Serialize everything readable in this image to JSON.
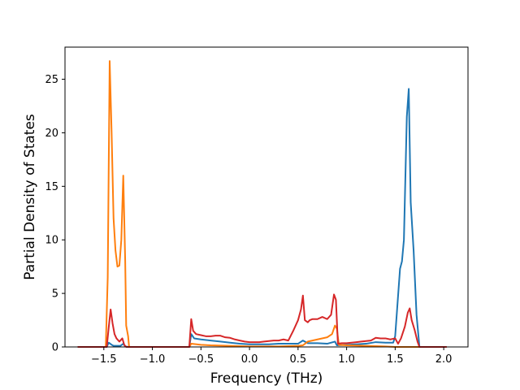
{
  "chart_data": {
    "type": "line",
    "xlabel": "Frequency (THz)",
    "ylabel": "Partial Density of States",
    "xlim": [
      -1.9,
      2.25
    ],
    "ylim": [
      0,
      28
    ],
    "xticks": [
      -1.5,
      -1.0,
      -0.5,
      0.0,
      0.5,
      1.0,
      1.5,
      2.0
    ],
    "xtick_labels": [
      "−1.5",
      "−1.0",
      "−0.5",
      "0.0",
      "0.5",
      "1.0",
      "1.5",
      "2.0"
    ],
    "yticks": [
      0,
      5,
      10,
      15,
      20,
      25
    ],
    "ytick_labels": [
      "0",
      "5",
      "10",
      "15",
      "20",
      "25"
    ],
    "grid": false,
    "legend": "none",
    "series": [
      {
        "color": "#1f77b4",
        "points": [
          [
            -1.77,
            0
          ],
          [
            -1.47,
            0
          ],
          [
            -1.45,
            0.4
          ],
          [
            -1.42,
            0.2
          ],
          [
            -1.4,
            0.1
          ],
          [
            -1.33,
            0.1
          ],
          [
            -1.3,
            0.3
          ],
          [
            -1.28,
            0.05
          ],
          [
            -1.25,
            0
          ],
          [
            -0.62,
            0
          ],
          [
            -0.6,
            1.2
          ],
          [
            -0.57,
            0.8
          ],
          [
            -0.5,
            0.7
          ],
          [
            -0.4,
            0.6
          ],
          [
            -0.3,
            0.5
          ],
          [
            -0.2,
            0.4
          ],
          [
            -0.1,
            0.3
          ],
          [
            0.0,
            0.25
          ],
          [
            0.1,
            0.25
          ],
          [
            0.2,
            0.25
          ],
          [
            0.3,
            0.3
          ],
          [
            0.4,
            0.3
          ],
          [
            0.5,
            0.3
          ],
          [
            0.55,
            0.6
          ],
          [
            0.6,
            0.35
          ],
          [
            0.7,
            0.35
          ],
          [
            0.8,
            0.3
          ],
          [
            0.88,
            0.5
          ],
          [
            0.9,
            0.15
          ],
          [
            1.0,
            0.2
          ],
          [
            1.1,
            0.25
          ],
          [
            1.2,
            0.3
          ],
          [
            1.3,
            0.45
          ],
          [
            1.4,
            0.4
          ],
          [
            1.48,
            0.4
          ],
          [
            1.5,
            1.0
          ],
          [
            1.55,
            7.3
          ],
          [
            1.57,
            8.0
          ],
          [
            1.59,
            10.0
          ],
          [
            1.62,
            21.5
          ],
          [
            1.64,
            24.1
          ],
          [
            1.66,
            13.5
          ],
          [
            1.69,
            9.0
          ],
          [
            1.72,
            3.0
          ],
          [
            1.75,
            0
          ],
          [
            2.03,
            0
          ]
        ]
      },
      {
        "color": "#ff7f0e",
        "points": [
          [
            -1.77,
            0
          ],
          [
            -1.48,
            0
          ],
          [
            -1.46,
            6.5
          ],
          [
            -1.44,
            26.7
          ],
          [
            -1.42,
            20.0
          ],
          [
            -1.4,
            12.0
          ],
          [
            -1.38,
            9.0
          ],
          [
            -1.36,
            7.5
          ],
          [
            -1.34,
            7.6
          ],
          [
            -1.32,
            10.0
          ],
          [
            -1.3,
            16.0
          ],
          [
            -1.28,
            8.0
          ],
          [
            -1.27,
            2.0
          ],
          [
            -1.25,
            1.0
          ],
          [
            -1.24,
            0
          ],
          [
            -0.62,
            0
          ],
          [
            -0.6,
            0.3
          ],
          [
            -0.5,
            0.2
          ],
          [
            -0.4,
            0.15
          ],
          [
            -0.2,
            0.1
          ],
          [
            0.0,
            0.05
          ],
          [
            0.3,
            0.05
          ],
          [
            0.5,
            0.1
          ],
          [
            0.55,
            0.15
          ],
          [
            0.6,
            0.5
          ],
          [
            0.7,
            0.7
          ],
          [
            0.8,
            0.9
          ],
          [
            0.85,
            1.2
          ],
          [
            0.88,
            2.0
          ],
          [
            0.9,
            1.7
          ],
          [
            0.92,
            0.2
          ],
          [
            1.0,
            0.15
          ],
          [
            1.2,
            0.1
          ],
          [
            1.4,
            0.05
          ],
          [
            1.5,
            0.0
          ],
          [
            2.03,
            0
          ]
        ]
      },
      {
        "color": "#d62728",
        "points": [
          [
            -1.77,
            0
          ],
          [
            -1.47,
            0
          ],
          [
            -1.45,
            1.8
          ],
          [
            -1.43,
            3.5
          ],
          [
            -1.41,
            2.2
          ],
          [
            -1.39,
            1.2
          ],
          [
            -1.37,
            0.8
          ],
          [
            -1.34,
            0.5
          ],
          [
            -1.31,
            0.8
          ],
          [
            -1.29,
            0.2
          ],
          [
            -1.27,
            0
          ],
          [
            -0.62,
            0
          ],
          [
            -0.6,
            2.6
          ],
          [
            -0.58,
            1.5
          ],
          [
            -0.55,
            1.2
          ],
          [
            -0.5,
            1.1
          ],
          [
            -0.45,
            1.0
          ],
          [
            -0.4,
            1.0
          ],
          [
            -0.35,
            1.05
          ],
          [
            -0.3,
            1.05
          ],
          [
            -0.25,
            0.9
          ],
          [
            -0.2,
            0.85
          ],
          [
            -0.15,
            0.7
          ],
          [
            -0.1,
            0.6
          ],
          [
            -0.05,
            0.5
          ],
          [
            0.0,
            0.45
          ],
          [
            0.05,
            0.45
          ],
          [
            0.1,
            0.45
          ],
          [
            0.15,
            0.5
          ],
          [
            0.2,
            0.55
          ],
          [
            0.25,
            0.6
          ],
          [
            0.3,
            0.6
          ],
          [
            0.35,
            0.7
          ],
          [
            0.4,
            0.6
          ],
          [
            0.45,
            1.5
          ],
          [
            0.5,
            2.5
          ],
          [
            0.53,
            3.5
          ],
          [
            0.55,
            4.8
          ],
          [
            0.57,
            2.5
          ],
          [
            0.6,
            2.3
          ],
          [
            0.62,
            2.5
          ],
          [
            0.65,
            2.6
          ],
          [
            0.7,
            2.6
          ],
          [
            0.75,
            2.8
          ],
          [
            0.8,
            2.6
          ],
          [
            0.84,
            3.0
          ],
          [
            0.87,
            4.9
          ],
          [
            0.89,
            4.4
          ],
          [
            0.91,
            0.3
          ],
          [
            0.95,
            0.35
          ],
          [
            1.0,
            0.35
          ],
          [
            1.05,
            0.4
          ],
          [
            1.1,
            0.45
          ],
          [
            1.15,
            0.5
          ],
          [
            1.2,
            0.55
          ],
          [
            1.25,
            0.6
          ],
          [
            1.3,
            0.85
          ],
          [
            1.35,
            0.8
          ],
          [
            1.4,
            0.8
          ],
          [
            1.45,
            0.7
          ],
          [
            1.5,
            0.8
          ],
          [
            1.53,
            0.3
          ],
          [
            1.56,
            0.8
          ],
          [
            1.6,
            1.9
          ],
          [
            1.63,
            3.2
          ],
          [
            1.65,
            3.6
          ],
          [
            1.67,
            2.5
          ],
          [
            1.7,
            1.6
          ],
          [
            1.73,
            0.5
          ],
          [
            1.75,
            0
          ],
          [
            2.03,
            0
          ]
        ]
      }
    ]
  }
}
